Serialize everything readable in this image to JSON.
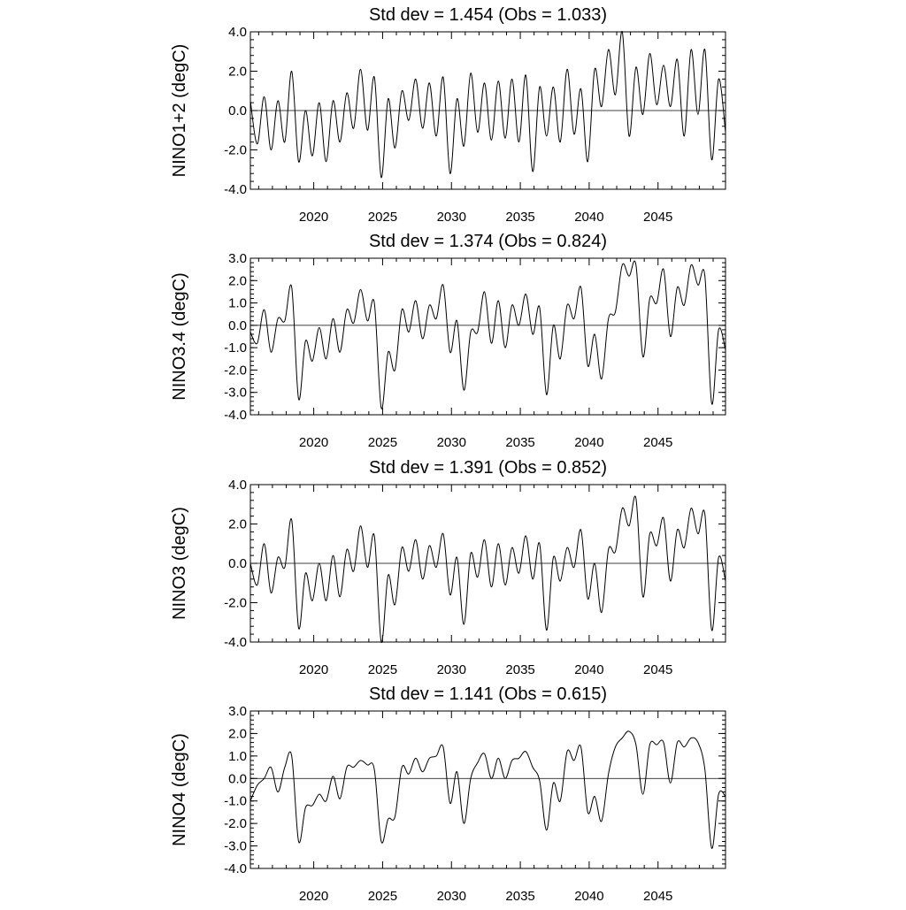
{
  "chart_data": [
    {
      "type": "line",
      "title": "Std dev = 1.454 (Obs = 1.033)",
      "ylabel": "NINO1+2 (degC)",
      "xlim": [
        2015.4,
        2049.9
      ],
      "ylim": [
        -4.0,
        4.0
      ],
      "yticks": [
        -4.0,
        -2.0,
        0.0,
        2.0,
        4.0
      ],
      "ytick_labels": [
        "-4.0",
        "-2.0",
        "0.0",
        "2.0",
        "4.0"
      ],
      "xticks": [
        2020,
        2025,
        2030,
        2035,
        2040,
        2045
      ],
      "xtick_labels": [
        "2020",
        "2025",
        "2030",
        "2035",
        "2040",
        "2045"
      ],
      "x": [
        2015.4,
        2015.9,
        2016.4,
        2016.9,
        2017.4,
        2017.9,
        2018.4,
        2018.9,
        2019.4,
        2019.9,
        2020.4,
        2020.9,
        2021.4,
        2021.9,
        2022.4,
        2022.9,
        2023.4,
        2023.9,
        2024.4,
        2024.9,
        2025.4,
        2025.9,
        2026.4,
        2026.9,
        2027.4,
        2027.9,
        2028.4,
        2028.9,
        2029.4,
        2029.9,
        2030.4,
        2030.9,
        2031.4,
        2031.9,
        2032.4,
        2032.9,
        2033.4,
        2033.9,
        2034.4,
        2034.9,
        2035.4,
        2035.9,
        2036.4,
        2036.9,
        2037.4,
        2037.9,
        2038.4,
        2038.9,
        2039.4,
        2039.9,
        2040.4,
        2040.9,
        2041.4,
        2041.9,
        2042.4,
        2042.9,
        2043.4,
        2043.9,
        2044.4,
        2044.9,
        2045.4,
        2045.9,
        2046.4,
        2046.9,
        2047.4,
        2047.9,
        2048.4,
        2048.9,
        2049.4,
        2049.9
      ],
      "values": [
        0.5,
        -1.7,
        0.7,
        -2.0,
        0.5,
        -1.6,
        2.0,
        -2.6,
        0.0,
        -2.3,
        0.4,
        -2.6,
        0.5,
        -1.6,
        0.9,
        -0.9,
        2.1,
        -1.0,
        1.7,
        -3.4,
        0.6,
        -1.9,
        1.0,
        -0.5,
        1.6,
        -0.9,
        1.4,
        -1.3,
        1.7,
        -3.2,
        0.6,
        -1.8,
        1.9,
        -1.1,
        1.4,
        -1.5,
        1.5,
        -1.4,
        1.6,
        -1.6,
        1.8,
        -3.1,
        1.2,
        -1.3,
        1.2,
        -1.6,
        2.1,
        -1.2,
        1.1,
        -2.6,
        2.1,
        0.2,
        3.1,
        0.8,
        4.0,
        -1.3,
        2.2,
        -0.2,
        2.9,
        0.3,
        2.3,
        0.2,
        2.6,
        -1.3,
        3.1,
        -0.2,
        3.1,
        -2.5,
        1.6,
        -1.1
      ]
    },
    {
      "type": "line",
      "title": "Std dev = 1.374 (Obs = 0.824)",
      "ylabel": "NINO3.4 (degC)",
      "xlim": [
        2015.4,
        2049.9
      ],
      "ylim": [
        -4.0,
        3.0
      ],
      "yticks": [
        -4.0,
        -3.0,
        -2.0,
        -1.0,
        0.0,
        1.0,
        2.0,
        3.0
      ],
      "ytick_labels": [
        "-4.0",
        "-3.0",
        "-2.0",
        "-1.0",
        "0.0",
        "1.0",
        "2.0",
        "3.0"
      ],
      "xticks": [
        2020,
        2025,
        2030,
        2035,
        2040,
        2045
      ],
      "xtick_labels": [
        "2020",
        "2025",
        "2030",
        "2035",
        "2040",
        "2045"
      ],
      "x": [
        2015.4,
        2015.9,
        2016.4,
        2016.9,
        2017.4,
        2017.9,
        2018.4,
        2018.9,
        2019.4,
        2019.9,
        2020.4,
        2020.9,
        2021.4,
        2021.9,
        2022.4,
        2022.9,
        2023.4,
        2023.9,
        2024.4,
        2024.9,
        2025.4,
        2025.9,
        2026.4,
        2026.9,
        2027.4,
        2027.9,
        2028.4,
        2028.9,
        2029.4,
        2029.9,
        2030.4,
        2030.9,
        2031.4,
        2031.9,
        2032.4,
        2032.9,
        2033.4,
        2033.9,
        2034.4,
        2034.9,
        2035.4,
        2035.9,
        2036.4,
        2036.9,
        2037.4,
        2037.9,
        2038.4,
        2038.9,
        2039.4,
        2039.9,
        2040.4,
        2040.9,
        2041.4,
        2041.9,
        2042.4,
        2042.9,
        2043.4,
        2043.9,
        2044.4,
        2044.9,
        2045.4,
        2045.9,
        2046.4,
        2046.9,
        2047.4,
        2047.9,
        2048.4,
        2048.9,
        2049.4,
        2049.9
      ],
      "values": [
        -0.3,
        -0.8,
        0.7,
        -1.2,
        0.3,
        0.2,
        1.7,
        -3.3,
        -0.7,
        -1.6,
        -0.1,
        -1.5,
        0.3,
        -1.2,
        0.7,
        0.1,
        1.6,
        0.2,
        1.0,
        -3.7,
        -1.2,
        -2.0,
        0.7,
        -0.3,
        1.1,
        -0.6,
        0.9,
        0.3,
        1.8,
        -1.2,
        0.2,
        -2.9,
        -0.3,
        -0.3,
        1.5,
        -0.8,
        1.1,
        -1.0,
        0.9,
        0.0,
        1.4,
        -0.4,
        0.8,
        -3.1,
        0.0,
        -1.5,
        0.9,
        0.3,
        1.7,
        -1.8,
        -0.4,
        -2.4,
        0.3,
        0.6,
        2.7,
        2.2,
        2.7,
        -1.4,
        1.2,
        1.0,
        2.5,
        -0.5,
        1.7,
        0.9,
        2.7,
        1.8,
        2.2,
        -3.5,
        -0.2,
        -1.1
      ]
    },
    {
      "type": "line",
      "title": "Std dev = 1.391 (Obs = 0.852)",
      "ylabel": "NINO3 (degC)",
      "xlim": [
        2015.4,
        2049.9
      ],
      "ylim": [
        -4.0,
        4.0
      ],
      "yticks": [
        -4.0,
        -2.0,
        0.0,
        2.0,
        4.0
      ],
      "ytick_labels": [
        "-4.0",
        "-2.0",
        "0.0",
        "2.0",
        "4.0"
      ],
      "xticks": [
        2020,
        2025,
        2030,
        2035,
        2040,
        2045
      ],
      "xtick_labels": [
        "2020",
        "2025",
        "2030",
        "2035",
        "2040",
        "2045"
      ],
      "x": [
        2015.4,
        2015.9,
        2016.4,
        2016.9,
        2017.4,
        2017.9,
        2018.4,
        2018.9,
        2019.4,
        2019.9,
        2020.4,
        2020.9,
        2021.4,
        2021.9,
        2022.4,
        2022.9,
        2023.4,
        2023.9,
        2024.4,
        2024.9,
        2025.4,
        2025.9,
        2026.4,
        2026.9,
        2027.4,
        2027.9,
        2028.4,
        2028.9,
        2029.4,
        2029.9,
        2030.4,
        2030.9,
        2031.4,
        2031.9,
        2032.4,
        2032.9,
        2033.4,
        2033.9,
        2034.4,
        2034.9,
        2035.4,
        2035.9,
        2036.4,
        2036.9,
        2037.4,
        2037.9,
        2038.4,
        2038.9,
        2039.4,
        2039.9,
        2040.4,
        2040.9,
        2041.4,
        2041.9,
        2042.4,
        2042.9,
        2043.4,
        2043.9,
        2044.4,
        2044.9,
        2045.4,
        2045.9,
        2046.4,
        2046.9,
        2047.4,
        2047.9,
        2048.4,
        2048.9,
        2049.4,
        2049.9
      ],
      "values": [
        0.0,
        -1.1,
        1.0,
        -1.5,
        0.3,
        -0.2,
        2.2,
        -3.3,
        -0.5,
        -1.9,
        0.0,
        -1.9,
        0.4,
        -1.7,
        0.7,
        -0.4,
        1.9,
        -0.2,
        1.4,
        -4.0,
        -0.6,
        -2.1,
        0.8,
        -0.4,
        1.2,
        -0.8,
        0.9,
        -0.2,
        1.5,
        -1.6,
        0.3,
        -3.1,
        0.5,
        -0.7,
        1.2,
        -1.2,
        1.0,
        -1.1,
        0.8,
        -0.5,
        1.4,
        -0.8,
        1.0,
        -3.4,
        0.3,
        -0.9,
        0.8,
        -0.2,
        1.7,
        -1.8,
        0.0,
        -2.5,
        0.7,
        0.6,
        2.8,
        1.9,
        3.3,
        -1.7,
        1.5,
        0.9,
        2.3,
        -0.9,
        1.7,
        0.8,
        2.8,
        1.5,
        2.5,
        -3.4,
        0.3,
        -0.9
      ]
    },
    {
      "type": "line",
      "title": "Std dev = 1.141 (Obs = 0.615)",
      "ylabel": "NINO4 (degC)",
      "xlim": [
        2015.4,
        2049.9
      ],
      "ylim": [
        -4.0,
        3.0
      ],
      "yticks": [
        -4.0,
        -3.0,
        -2.0,
        -1.0,
        0.0,
        1.0,
        2.0,
        3.0
      ],
      "ytick_labels": [
        "-4.0",
        "-3.0",
        "-2.0",
        "-1.0",
        "0.0",
        "1.0",
        "2.0",
        "3.0"
      ],
      "xticks": [
        2020,
        2025,
        2030,
        2035,
        2040,
        2045
      ],
      "xtick_labels": [
        "2020",
        "2025",
        "2030",
        "2035",
        "2040",
        "2045"
      ],
      "x": [
        2015.4,
        2015.9,
        2016.4,
        2016.9,
        2017.4,
        2017.9,
        2018.4,
        2018.9,
        2019.4,
        2019.9,
        2020.4,
        2020.9,
        2021.4,
        2021.9,
        2022.4,
        2022.9,
        2023.4,
        2023.9,
        2024.4,
        2024.9,
        2025.4,
        2025.9,
        2026.4,
        2026.9,
        2027.4,
        2027.9,
        2028.4,
        2028.9,
        2029.4,
        2029.9,
        2030.4,
        2030.9,
        2031.4,
        2031.9,
        2032.4,
        2032.9,
        2033.4,
        2033.9,
        2034.4,
        2034.9,
        2035.4,
        2035.9,
        2036.4,
        2036.9,
        2037.4,
        2037.9,
        2038.4,
        2038.9,
        2039.4,
        2039.9,
        2040.4,
        2040.9,
        2041.4,
        2041.9,
        2042.4,
        2042.9,
        2043.4,
        2043.9,
        2044.4,
        2044.9,
        2045.4,
        2045.9,
        2046.4,
        2046.9,
        2047.4,
        2047.9,
        2048.4,
        2048.9,
        2049.4,
        2049.9
      ],
      "values": [
        -1.0,
        -0.3,
        0.0,
        0.5,
        -0.6,
        0.5,
        1.0,
        -2.8,
        -1.3,
        -1.2,
        -0.7,
        -1.0,
        0.1,
        -0.9,
        0.5,
        0.5,
        0.8,
        0.6,
        0.4,
        -2.8,
        -1.8,
        -1.7,
        0.5,
        0.2,
        0.9,
        0.3,
        0.9,
        1.0,
        1.4,
        -1.1,
        0.3,
        -2.0,
        0.0,
        0.7,
        1.1,
        0.0,
        0.9,
        0.0,
        0.8,
        0.9,
        1.2,
        0.5,
        -0.1,
        -2.3,
        -0.2,
        -1.0,
        1.2,
        0.8,
        1.4,
        -1.5,
        -0.8,
        -1.9,
        0.2,
        1.4,
        1.8,
        2.1,
        1.5,
        -0.7,
        1.5,
        1.5,
        1.6,
        -0.2,
        1.6,
        1.4,
        1.8,
        1.6,
        0.4,
        -3.1,
        -0.7,
        -0.8
      ]
    }
  ]
}
